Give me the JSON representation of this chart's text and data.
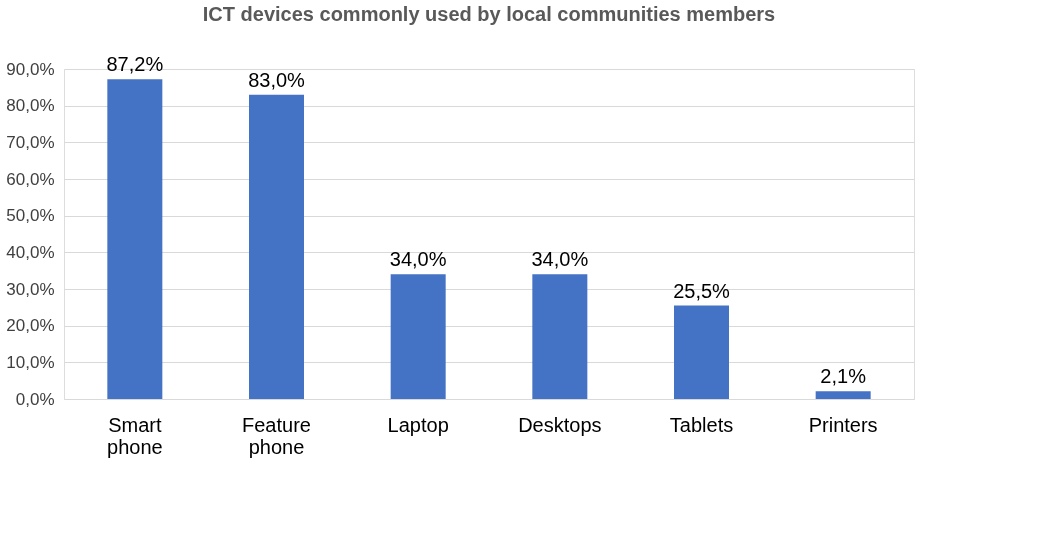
{
  "chart_data": {
    "type": "bar",
    "title": "ICT devices commonly used by local communities members",
    "categories": [
      "Smart phone",
      "Feature phone",
      "Laptop",
      "Desktops",
      "Tablets",
      "Printers"
    ],
    "values": [
      87.2,
      83.0,
      34.0,
      34.0,
      25.5,
      2.1
    ],
    "value_labels": [
      "87,2%",
      "83,0%",
      "34,0%",
      "34,0%",
      "25,5%",
      "2,1%"
    ],
    "color": "#4472c4",
    "ylim": [
      0,
      90
    ],
    "yticks": [
      {
        "value": 0,
        "label": "0,0%"
      },
      {
        "value": 10,
        "label": "10,0%"
      },
      {
        "value": 20,
        "label": "20,0%"
      },
      {
        "value": 30,
        "label": "30,0%"
      },
      {
        "value": 40,
        "label": "40,0%"
      },
      {
        "value": 50,
        "label": "50,0%"
      },
      {
        "value": 60,
        "label": "60,0%"
      },
      {
        "value": 70,
        "label": "70,0%"
      },
      {
        "value": 80,
        "label": "80,0%"
      },
      {
        "value": 90,
        "label": "90,0%"
      }
    ],
    "grid": "y"
  }
}
